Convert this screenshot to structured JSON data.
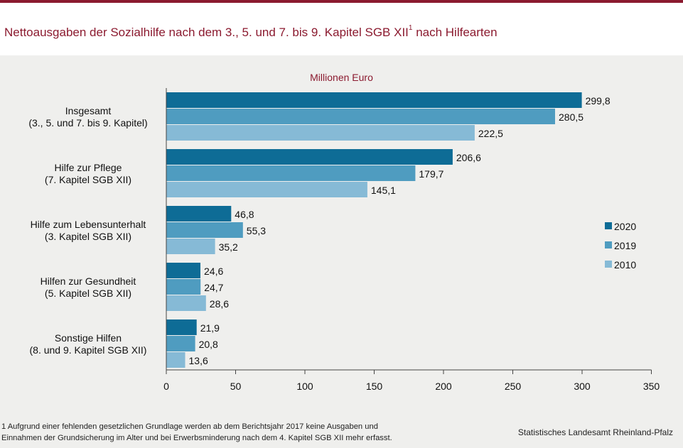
{
  "header": {
    "title": "Nettoausgaben der Sozialhilfe nach dem 3., 5. und 7. bis 9. Kapitel SGB XII",
    "title_sup": "1",
    "title_suffix": " nach Hilfearten"
  },
  "colors": {
    "title": "#8b1a2f",
    "top_rule": "#8b1a2f"
  },
  "chart_data": {
    "type": "bar",
    "orientation": "horizontal",
    "unit_label": "Millionen  Euro",
    "categories": [
      [
        "Insgesamt",
        "(3., 5. und 7. bis 9. Kapitel)"
      ],
      [
        "Hilfe zur Pflege",
        "(7. Kapitel SGB XII)"
      ],
      [
        "Hilfe zum Lebensunterhalt",
        "(3. Kapitel SGB XII)"
      ],
      [
        "Hilfen zur Gesundheit",
        "(5. Kapitel SGB XII)"
      ],
      [
        "Sonstige Hilfen",
        "(8. und 9. Kapitel SGB XII)"
      ]
    ],
    "series": [
      {
        "name": "2020",
        "color": "#0e6c96",
        "values": [
          299.8,
          206.6,
          46.8,
          24.6,
          21.9
        ],
        "labels": [
          "299,8",
          "206,6",
          "46,8",
          "24,6",
          "21,9"
        ]
      },
      {
        "name": "2019",
        "color": "#4f9cc0",
        "values": [
          280.5,
          179.7,
          55.3,
          24.7,
          20.8
        ],
        "labels": [
          "280,5",
          "179,7",
          "55,3",
          "24,7",
          "20,8"
        ]
      },
      {
        "name": "2010",
        "color": "#86bad6",
        "values": [
          222.5,
          145.1,
          35.2,
          28.6,
          13.6
        ],
        "labels": [
          "222,5",
          "145,1",
          "35,2",
          "28,6",
          "13,6"
        ]
      }
    ],
    "xlim": [
      0,
      350
    ],
    "xticks": [
      0,
      50,
      100,
      150,
      200,
      250,
      300,
      350
    ],
    "grid": false,
    "legend_position": "right"
  },
  "footnote": {
    "line1": "1  Aufgrund  einer fehlenden  gesetzlichen Grundlage  werden  ab dem Berichtsjahr 2017 keine Ausgaben und",
    "line2": "Einnahmen  der Grundsicherung  im Alter und bei Erwerbsminderung  nach dem 4. Kapitel SGB XII  mehr erfasst."
  },
  "source": "Statistisches Landesamt  Rheinland-Pfalz"
}
